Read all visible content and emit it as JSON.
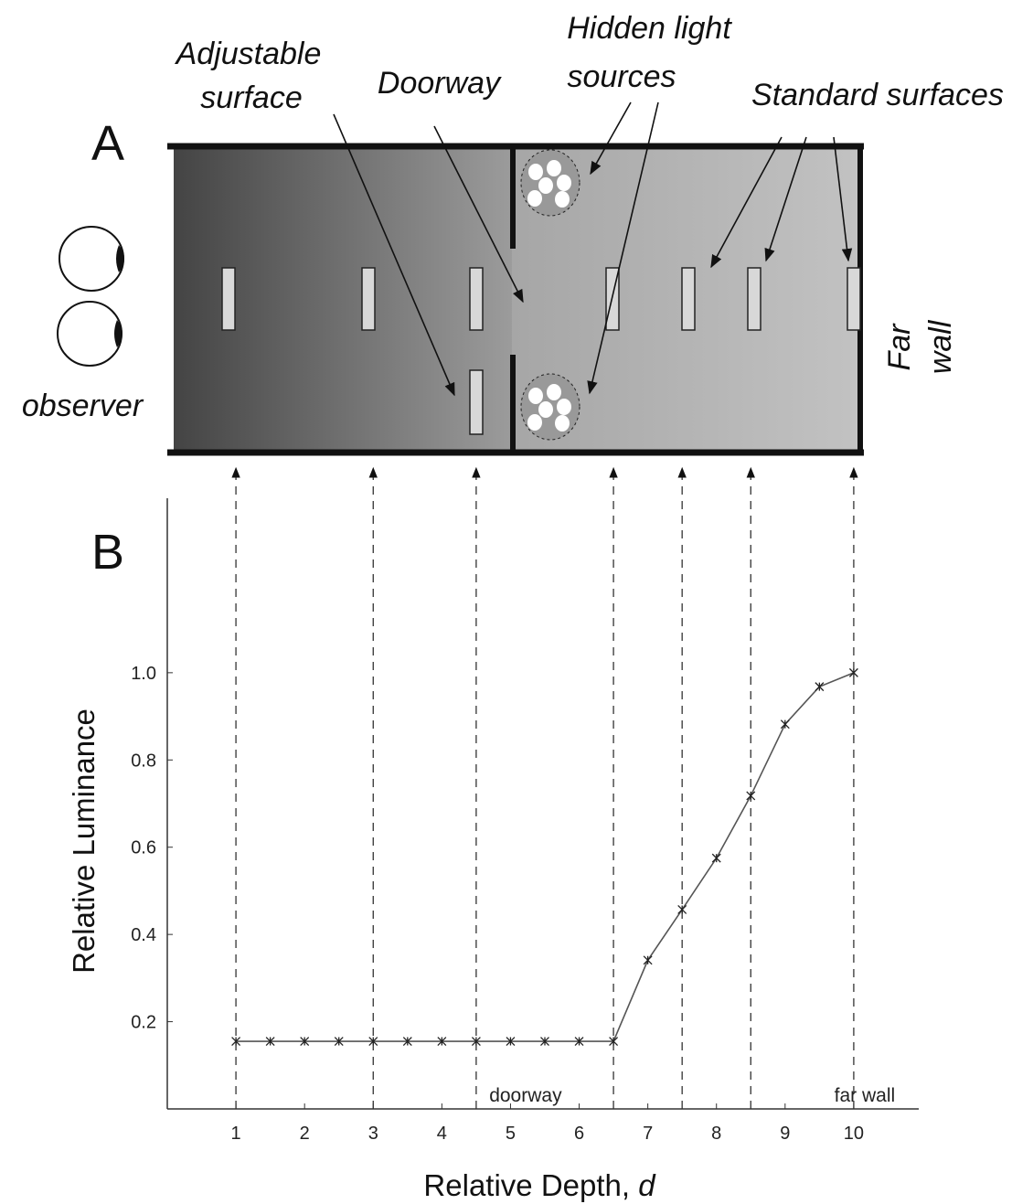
{
  "diagram": {
    "panel_label": "A",
    "adjustable_surface": [
      "Adjustable",
      "surface"
    ],
    "doorway": "Doorway",
    "hidden_light_sources": [
      "Hidden light",
      "sources"
    ],
    "standard_surfaces": "Standard surfaces",
    "far_wall": [
      "Far",
      "wall"
    ],
    "observer": "observer"
  },
  "chart_data": {
    "type": "line",
    "panel_label": "B",
    "ylabel": "Relative Luminance",
    "xlabel": "Relative Depth,",
    "xlabel_variable": "d",
    "x": [
      1,
      1.5,
      2,
      2.5,
      3,
      3.5,
      4,
      4.5,
      5,
      5.5,
      6,
      6.5,
      7,
      7.5,
      8,
      8.5,
      9,
      9.5,
      10
    ],
    "values": [
      0.155,
      0.155,
      0.155,
      0.155,
      0.155,
      0.155,
      0.155,
      0.155,
      0.155,
      0.155,
      0.155,
      0.155,
      0.341,
      0.457,
      0.575,
      0.718,
      0.882,
      0.968,
      1.0
    ],
    "color": "#555555",
    "surface_depths": [
      1,
      3,
      4.5,
      6.5,
      7.5,
      8.5,
      10
    ],
    "annotations": [
      "doorway",
      "far wall"
    ],
    "xlim": [
      0,
      11
    ],
    "ylim": [
      0,
      1.4
    ],
    "xticks": [
      1,
      2,
      3,
      4,
      5,
      6,
      7,
      8,
      9,
      10
    ],
    "yticks": [
      0.2,
      0.4,
      0.6,
      0.8,
      {
        "value": 1.0,
        "label": "1.0"
      }
    ]
  }
}
